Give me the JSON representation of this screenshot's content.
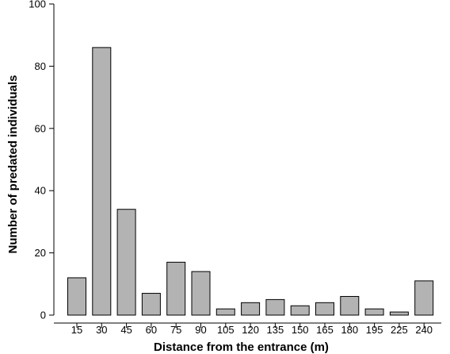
{
  "chart_data": {
    "type": "bar",
    "title": "",
    "xlabel": "Distance from the entrance (m)",
    "ylabel": "Number of predated individuals",
    "categories": [
      "15",
      "30",
      "45",
      "60",
      "75",
      "90",
      "105",
      "120",
      "135",
      "150",
      "165",
      "180",
      "195",
      "225",
      "240"
    ],
    "values": [
      12,
      86,
      34,
      7,
      17,
      14,
      2,
      4,
      5,
      3,
      4,
      6,
      2,
      1,
      11
    ],
    "ylim": [
      0,
      100
    ],
    "yticks": [
      "0",
      "20",
      "40",
      "60",
      "80",
      "100"
    ],
    "grid": false,
    "legend": "none",
    "bar_color": "#b3b3b3",
    "bar_edge_color": "#000000"
  }
}
